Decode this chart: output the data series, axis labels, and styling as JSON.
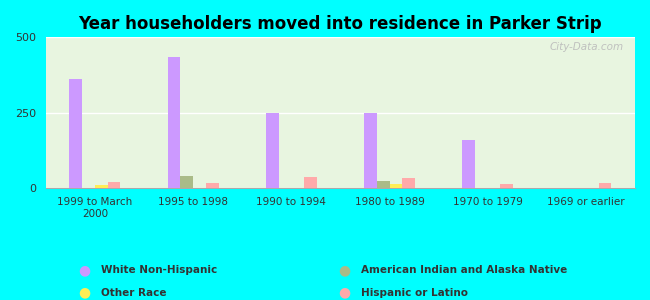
{
  "title": "Year householders moved into residence in Parker Strip",
  "background_color": "#00FFFF",
  "plot_bg_gradient_colors": [
    "#e8f5e0",
    "#d0f0e8"
  ],
  "categories": [
    "1999 to March\n2000",
    "1995 to 1998",
    "1990 to 1994",
    "1980 to 1989",
    "1970 to 1979",
    "1969 or earlier"
  ],
  "series": [
    {
      "name": "White Non-Hispanic",
      "values": [
        360,
        435,
        249,
        247,
        160,
        0
      ],
      "color": "#cc99ff"
    },
    {
      "name": "American Indian and Alaska Native",
      "values": [
        0,
        40,
        0,
        22,
        0,
        0
      ],
      "color": "#aabb88"
    },
    {
      "name": "Other Race",
      "values": [
        10,
        0,
        0,
        12,
        0,
        0
      ],
      "color": "#ffee55"
    },
    {
      "name": "Hispanic or Latino",
      "values": [
        20,
        15,
        35,
        32,
        12,
        17
      ],
      "color": "#ffaaaa"
    }
  ],
  "ylim": [
    0,
    500
  ],
  "yticks": [
    0,
    250,
    500
  ],
  "watermark": "City-Data.com",
  "legend_items_col1": [
    {
      "label": "White Non-Hispanic",
      "color": "#cc99ff"
    },
    {
      "label": "Other Race",
      "color": "#ffee55"
    }
  ],
  "legend_items_col2": [
    {
      "label": "American Indian and Alaska Native",
      "color": "#aabb88"
    },
    {
      "label": "Hispanic or Latino",
      "color": "#ffaaaa"
    }
  ]
}
